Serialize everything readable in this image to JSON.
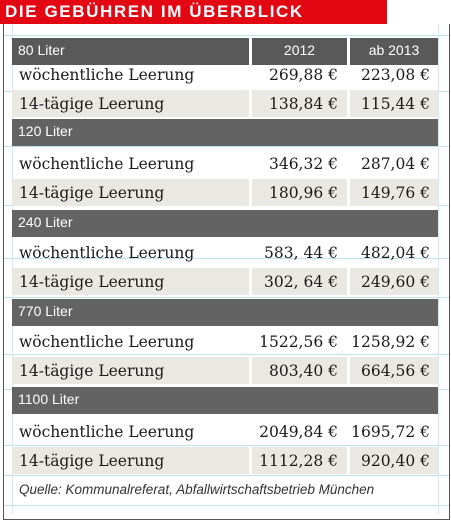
{
  "title": "DIE GEBÜHREN IM ÜBERBLICK",
  "header": {
    "col_2012": "2012",
    "col_2013": "ab 2013"
  },
  "groups": [
    {
      "label": "80 Liter",
      "rows": [
        {
          "label": "wöchentliche Leerung",
          "v2012": "269,88 €",
          "v2013": "223,08 €"
        },
        {
          "label": "14-tägige Leerung",
          "v2012": "138,84 €",
          "v2013": "115,44 €"
        }
      ]
    },
    {
      "label": "120 Liter",
      "rows": [
        {
          "label": "wöchentliche Leerung",
          "v2012": "346,32 €",
          "v2013": "287,04 €"
        },
        {
          "label": "14-tägige Leerung",
          "v2012": "180,96 €",
          "v2013": "149,76 €"
        }
      ]
    },
    {
      "label": "240 Liter",
      "rows": [
        {
          "label": "wöchentliche Leerung",
          "v2012": "583, 44 €",
          "v2013": "482,04 €"
        },
        {
          "label": "14-tägige Leerung",
          "v2012": "302, 64 €",
          "v2013": "249,60 €"
        }
      ]
    },
    {
      "label": "770 Liter",
      "rows": [
        {
          "label": "wöchentliche Leerung",
          "v2012": "1522,56 €",
          "v2013": "1258,92 €"
        },
        {
          "label": "14-tägige Leerung",
          "v2012": "803,40 €",
          "v2013": "664,56 €"
        }
      ]
    },
    {
      "label": "1100 Liter",
      "rows": [
        {
          "label": "wöchentliche Leerung",
          "v2012": "2049,84 €",
          "v2013": "1695,72 €"
        },
        {
          "label": "14-tägige Leerung",
          "v2012": "1112,28 €",
          "v2013": "920,40 €"
        }
      ]
    }
  ],
  "source": "Quelle: Kommunalreferat, Abfallwirtschaftsbetrieb München",
  "colors": {
    "banner": "#e30613",
    "bar": "#636363",
    "shade": "#e9e8e2",
    "guide": "#bfe2ec"
  }
}
